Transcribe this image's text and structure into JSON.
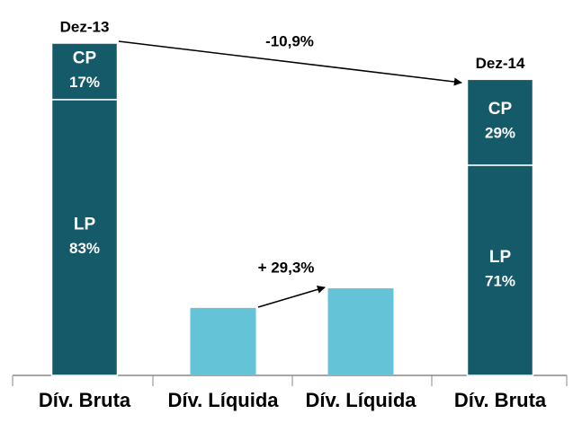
{
  "chart_data": {
    "type": "bar",
    "categories": [
      "Dív. Bruta",
      "Dív. Líquida",
      "Dív. Líquida",
      "Dív. Bruta"
    ],
    "totals": [
      100,
      20.3,
      26.2,
      89.1
    ],
    "series": [
      {
        "name": "LP",
        "color": "#145a68",
        "values": [
          83,
          null,
          null,
          71
        ],
        "value_labels": [
          "83%",
          null,
          null,
          "71%"
        ]
      },
      {
        "name": "CP",
        "color": "#145a68",
        "values": [
          17,
          null,
          null,
          29
        ],
        "value_labels": [
          "17%",
          null,
          null,
          "29%"
        ]
      }
    ],
    "total_color": "#65c3d8",
    "period_labels": [
      "Dez-13",
      null,
      null,
      "Dez-14"
    ],
    "changes": [
      "-10,9%",
      "+ 29,3%"
    ]
  }
}
